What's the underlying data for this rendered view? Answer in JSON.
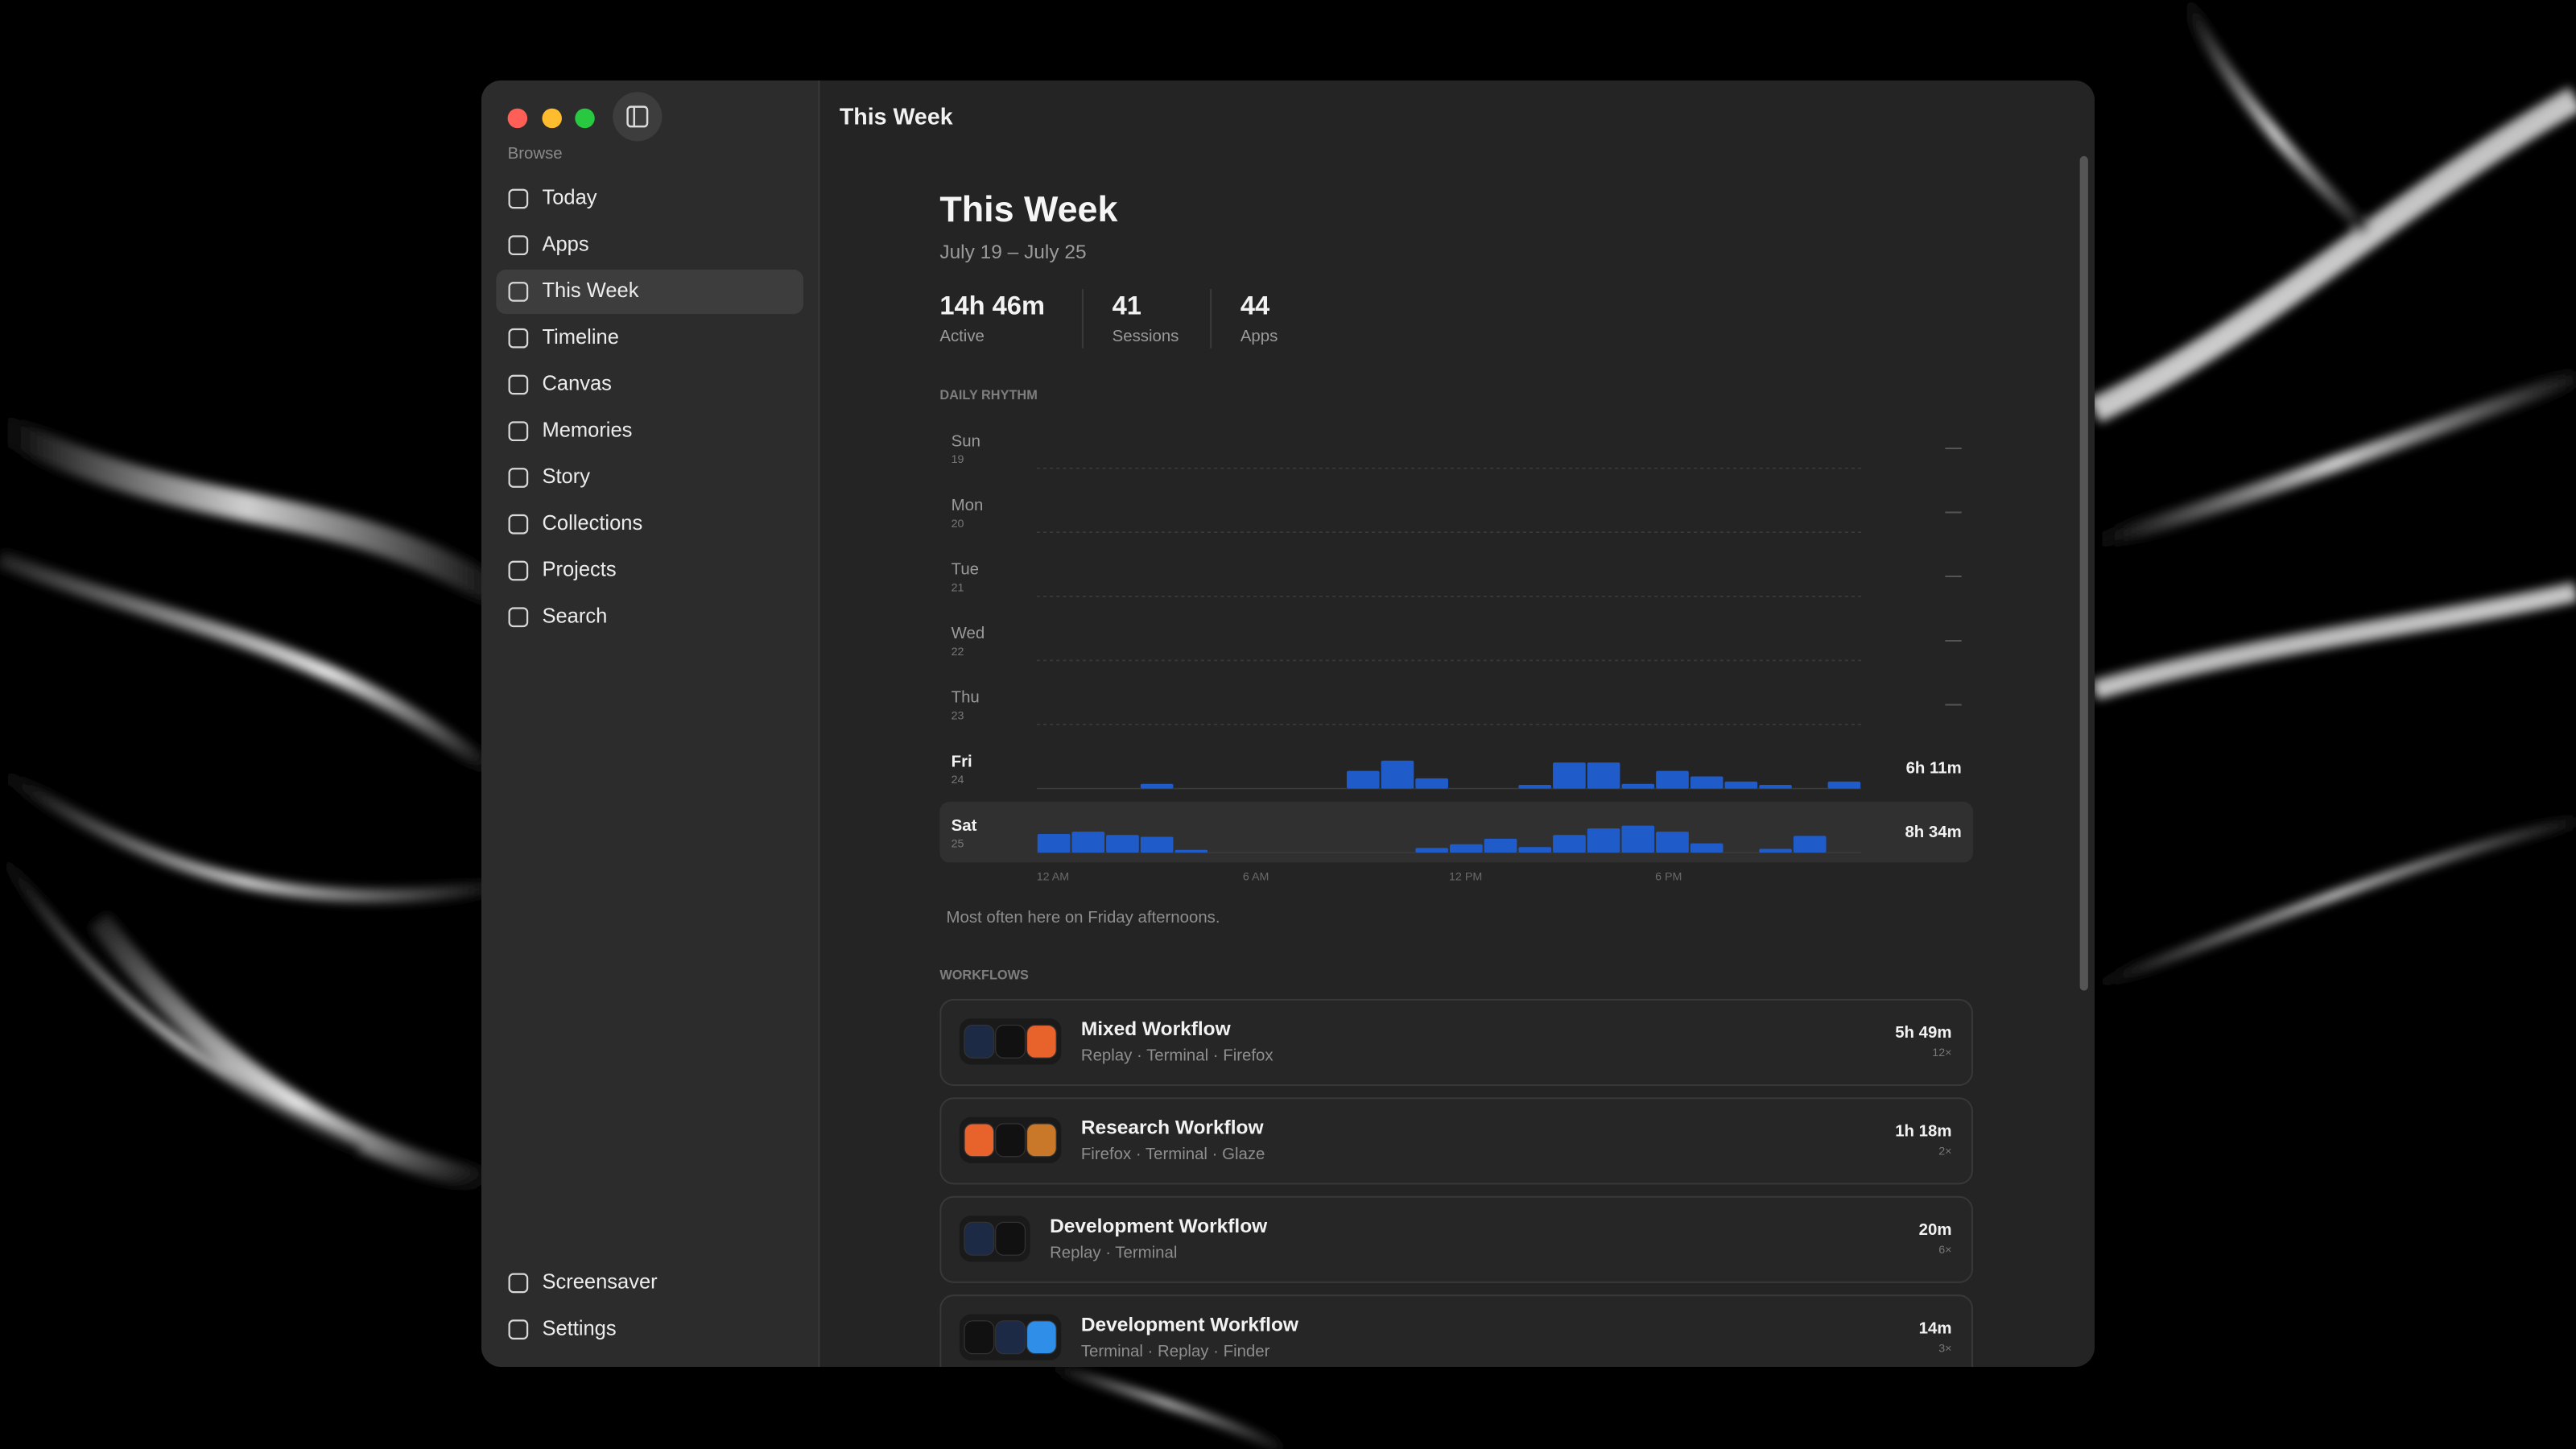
{
  "window": {
    "title": "This Week"
  },
  "sidebar": {
    "section": "Browse",
    "items": [
      "Today",
      "Apps",
      "This Week",
      "Timeline",
      "Canvas",
      "Memories",
      "Story",
      "Collections",
      "Projects",
      "Search"
    ],
    "selected_index": 2,
    "footer_items": [
      "Screensaver",
      "Settings"
    ]
  },
  "header": {
    "title": "This Week",
    "date_range": "July 19 – July 25"
  },
  "stats": [
    {
      "value": "14h 46m",
      "label": "Active"
    },
    {
      "value": 41,
      "label": "Sessions"
    },
    {
      "value": 44,
      "label": "Apps"
    }
  ],
  "daily_rhythm": {
    "type": "bar",
    "title": "DAILY RHYTHM",
    "color": "#1f5cc9",
    "xlim": [
      0,
      24
    ],
    "xticks": [
      {
        "value": 0,
        "label": "12 AM"
      },
      {
        "value": 6,
        "label": "6 AM"
      },
      {
        "value": 12,
        "label": "12 PM"
      },
      {
        "value": 18,
        "label": "6 PM"
      }
    ],
    "ylim": [
      0,
      60
    ],
    "highlight_index": 6,
    "rows": [
      {
        "day": "Sun",
        "date": 19,
        "total": "—"
      },
      {
        "day": "Mon",
        "date": 20,
        "total": "—"
      },
      {
        "day": "Tue",
        "date": 21,
        "total": "—"
      },
      {
        "day": "Wed",
        "date": 22,
        "total": "—"
      },
      {
        "day": "Thu",
        "date": 23,
        "total": "—"
      },
      {
        "day": "Fri",
        "date": 24,
        "total": "6h 11m",
        "values": [
          0,
          0,
          0,
          10,
          0,
          0,
          0,
          0,
          0,
          38,
          60,
          22,
          0,
          0,
          8,
          56,
          56,
          10,
          38,
          26,
          15,
          8,
          0,
          15
        ]
      },
      {
        "day": "Sat",
        "date": 25,
        "total": "8h 34m",
        "values": [
          40,
          45,
          38,
          34,
          6,
          0,
          0,
          0,
          0,
          0,
          0,
          10,
          18,
          30,
          12,
          38,
          52,
          58,
          45,
          20,
          0,
          8,
          36,
          0
        ]
      }
    ],
    "note": "Most often here on Friday afternoons."
  },
  "workflows": {
    "title": "WORKFLOWS",
    "items": [
      {
        "name": "Mixed Workflow",
        "apps": "Replay · Terminal · Firefox",
        "duration": "5h 49m",
        "count": "12×",
        "icon_colors": [
          "#1d2a45",
          "#111111",
          "#e8622c"
        ]
      },
      {
        "name": "Research Workflow",
        "apps": "Firefox · Terminal · Glaze",
        "duration": "1h 18m",
        "count": "2×",
        "icon_colors": [
          "#e8622c",
          "#111111",
          "#c9782a"
        ]
      },
      {
        "name": "Development Workflow",
        "apps": "Replay · Terminal",
        "duration": "20m",
        "count": "6×",
        "icon_colors": [
          "#1d2a45",
          "#111111"
        ]
      },
      {
        "name": "Development Workflow",
        "apps": "Terminal · Replay · Finder",
        "duration": "14m",
        "count": "3×",
        "icon_colors": [
          "#111111",
          "#1d2a45",
          "#2f8fe8"
        ]
      }
    ]
  }
}
